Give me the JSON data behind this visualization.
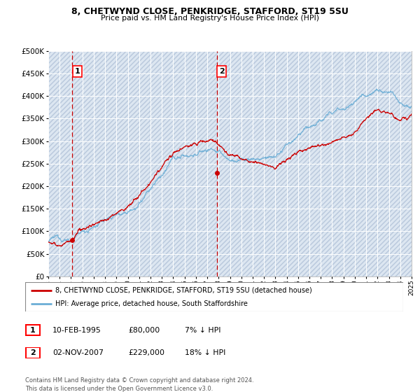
{
  "title": "8, CHETWYND CLOSE, PENKRIDGE, STAFFORD, ST19 5SU",
  "subtitle": "Price paid vs. HM Land Registry's House Price Index (HPI)",
  "ylim": [
    0,
    500000
  ],
  "yticks": [
    0,
    50000,
    100000,
    150000,
    200000,
    250000,
    300000,
    350000,
    400000,
    450000,
    500000
  ],
  "sale1_date": 1995.11,
  "sale1_price": 80000,
  "sale1_label": "1",
  "sale2_date": 2007.84,
  "sale2_price": 229000,
  "sale2_label": "2",
  "legend_line1": "8, CHETWYND CLOSE, PENKRIDGE, STAFFORD, ST19 5SU (detached house)",
  "legend_line2": "HPI: Average price, detached house, South Staffordshire",
  "footnote": "Contains HM Land Registry data © Crown copyright and database right 2024.\nThis data is licensed under the Open Government Licence v3.0.",
  "hpi_color": "#6baed6",
  "price_color": "#cc0000",
  "bg_color": "#dce6f1",
  "hatch_color": "#b8c8dc",
  "grid_color": "#ffffff",
  "vline_color": "#cc0000",
  "sale1_date_str": "10-FEB-1995",
  "sale1_price_str": "£80,000",
  "sale1_hpi_str": "7% ↓ HPI",
  "sale2_date_str": "02-NOV-2007",
  "sale2_price_str": "£229,000",
  "sale2_hpi_str": "18% ↓ HPI"
}
